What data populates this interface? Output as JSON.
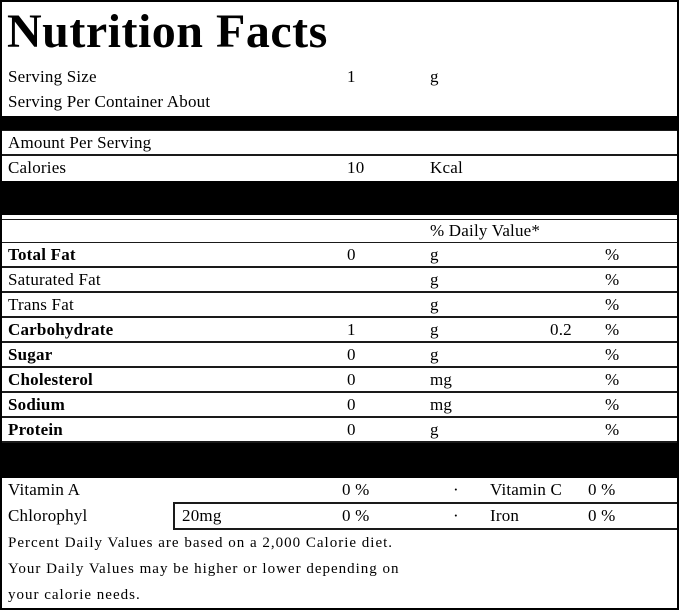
{
  "title": "Nutrition Facts",
  "serving": {
    "size_label": "Serving Size",
    "size_value": "1",
    "size_unit": "g",
    "container_label": "Serving Per Container About"
  },
  "amount_per_serving_label": "Amount Per Serving",
  "calories": {
    "label": "Calories",
    "value": "10",
    "unit": "Kcal"
  },
  "daily_value_header": "% Daily Value*",
  "nutrients": [
    {
      "label": "Total Fat",
      "value": "0",
      "unit": "g",
      "dv": "",
      "pct": "%"
    },
    {
      "label": "Saturated Fat",
      "value": "",
      "unit": "g",
      "dv": "",
      "pct": "%"
    },
    {
      "label": "Trans Fat",
      "value": "",
      "unit": "g",
      "dv": "",
      "pct": "%"
    },
    {
      "label": "Carbohydrate",
      "value": "1",
      "unit": "g",
      "dv": "0.2",
      "pct": "%"
    },
    {
      "label": "Sugar",
      "value": "0",
      "unit": "g",
      "dv": "",
      "pct": "%"
    },
    {
      "label": "Cholesterol",
      "value": "0",
      "unit": "mg",
      "dv": "",
      "pct": "%"
    },
    {
      "label": "Sodium",
      "value": "0",
      "unit": "mg",
      "dv": "",
      "pct": "%"
    },
    {
      "label": "Protein",
      "value": "0",
      "unit": "g",
      "dv": "",
      "pct": "%"
    }
  ],
  "micronutrients": [
    {
      "label": "Vitamin A",
      "amount": "",
      "pct": "0 %",
      "separator": "·",
      "label2": "Vitamin C",
      "pct2": "0 %"
    },
    {
      "label": "Chlorophyl",
      "amount": "20mg",
      "pct": "0 %",
      "separator": "·",
      "label2": "Iron",
      "pct2": "0 %"
    }
  ],
  "footnotes": [
    "Percent Daily Values are based on a 2,000 Calorie diet.",
    "Your Daily Values may be higher or lower depending on",
    "your calorie needs."
  ],
  "colors": {
    "text": "#000000",
    "background": "#ffffff",
    "divider": "#000000"
  }
}
